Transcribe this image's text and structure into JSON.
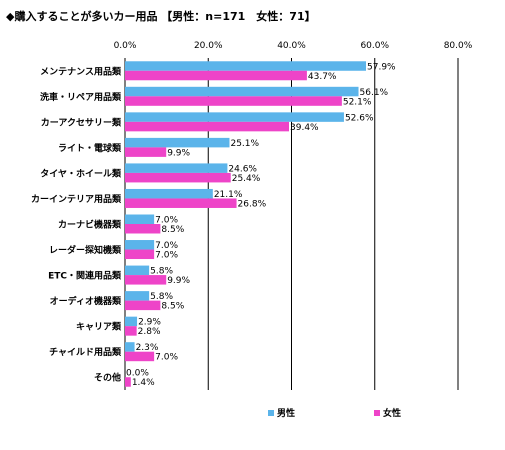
{
  "chart_data": {
    "type": "bar",
    "orientation": "horizontal",
    "title": "◆購入することが多いカー用品 【男性：n=171　女性：71】",
    "xlabel": "",
    "ylabel": "",
    "xlim": [
      0,
      80
    ],
    "xticks": [
      "0.0%",
      "20.0%",
      "40.0%",
      "60.0%",
      "80.0%"
    ],
    "xtick_values": [
      0,
      20,
      40,
      60,
      80
    ],
    "grid": true,
    "legend_position": "bottom",
    "categories": [
      "メンテナンス用品類",
      "洗車・リペア用品類",
      "カーアクセサリー類",
      "ライト・電球類",
      "タイヤ・ホイール類",
      "カーインテリア用品類",
      "カーナビ機器類",
      "レーダー探知機類",
      "ETC・関連用品類",
      "オーディオ機器類",
      "キャリア類",
      "チャイルド用品類",
      "その他"
    ],
    "series": [
      {
        "name": "男性",
        "color": "#5BB4EA",
        "values": [
          57.9,
          56.1,
          52.6,
          25.1,
          24.6,
          21.1,
          7.0,
          7.0,
          5.8,
          5.8,
          2.9,
          2.3,
          0.0
        ],
        "labels": [
          "57.9%",
          "56.1%",
          "52.6%",
          "25.1%",
          "24.6%",
          "21.1%",
          "7.0%",
          "7.0%",
          "5.8%",
          "5.8%",
          "2.9%",
          "2.3%",
          "0.0%"
        ]
      },
      {
        "name": "女性",
        "color": "#EE44C8",
        "values": [
          43.7,
          52.1,
          39.4,
          9.9,
          25.4,
          26.8,
          8.5,
          7.0,
          9.9,
          8.5,
          2.8,
          7.0,
          1.4
        ],
        "labels": [
          "43.7%",
          "52.1%",
          "39.4%",
          "9.9%",
          "25.4%",
          "26.8%",
          "8.5%",
          "7.0%",
          "9.9%",
          "8.5%",
          "2.8%",
          "7.0%",
          "1.4%"
        ]
      }
    ]
  }
}
